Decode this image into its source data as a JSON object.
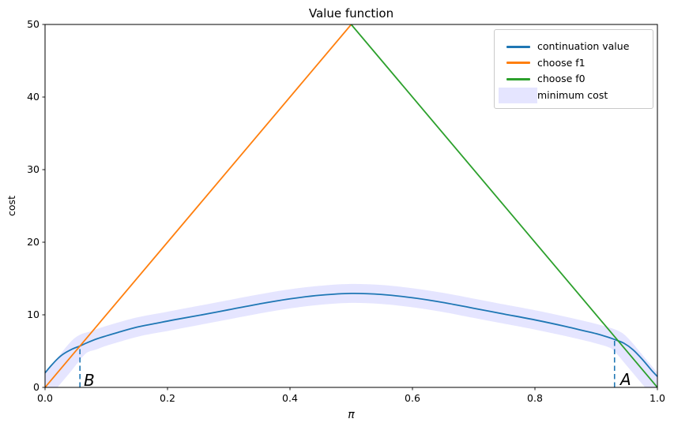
{
  "figure": {
    "title": "Value function",
    "xlabel": "π",
    "ylabel": "cost"
  },
  "annotations": {
    "a": "A",
    "b": "B"
  },
  "ticks": {
    "x_labels": [
      "0.0",
      "0.2",
      "0.4",
      "0.6",
      "0.8",
      "1.0"
    ],
    "y_labels": [
      "0",
      "10",
      "20",
      "30",
      "40",
      "50"
    ]
  },
  "legend": {
    "entries": [
      {
        "label": "continuation value",
        "swatch": "line",
        "color": "#1f77b4"
      },
      {
        "label": "choose f1",
        "swatch": "line",
        "color": "#ff7f0e"
      },
      {
        "label": "choose f0",
        "swatch": "line",
        "color": "#2ca02c"
      },
      {
        "label": "minimum cost",
        "swatch": "patch",
        "color": "#0000ff",
        "opacity": 0.1
      }
    ]
  },
  "chart_data": {
    "type": "line",
    "title": "Value function",
    "xlabel": "π",
    "ylabel": "cost",
    "xlim": [
      0,
      1
    ],
    "ylim": [
      0,
      50
    ],
    "x_ticks": [
      0,
      0.2,
      0.4,
      0.6,
      0.8,
      1.0
    ],
    "y_ticks": [
      0,
      10,
      20,
      30,
      40,
      50
    ],
    "grid": false,
    "legend_position": "upper right",
    "series": [
      {
        "name": "continuation value",
        "kind": "line",
        "color": "#1f77b4",
        "width": 1.8,
        "x": [
          0,
          0.01,
          0.02,
          0.03,
          0.045,
          0.057,
          0.07,
          0.085,
          0.1,
          0.12,
          0.15,
          0.18,
          0.21,
          0.25,
          0.3,
          0.35,
          0.4,
          0.45,
          0.5,
          0.55,
          0.6,
          0.65,
          0.7,
          0.75,
          0.8,
          0.85,
          0.88,
          0.9,
          0.92,
          0.93,
          0.945,
          0.96,
          0.975,
          0.99,
          1.0
        ],
        "y": [
          2.0,
          3.0,
          3.9,
          4.6,
          5.3,
          5.7,
          6.2,
          6.7,
          7.1,
          7.6,
          8.3,
          8.8,
          9.3,
          9.9,
          10.7,
          11.5,
          12.2,
          12.7,
          12.95,
          12.8,
          12.35,
          11.7,
          10.9,
          10.1,
          9.3,
          8.4,
          7.8,
          7.4,
          6.9,
          6.6,
          6.1,
          5.2,
          3.9,
          2.4,
          1.5
        ]
      },
      {
        "name": "choose f1",
        "kind": "line",
        "color": "#ff7f0e",
        "width": 1.8,
        "x": [
          0,
          0.5
        ],
        "y": [
          0,
          50
        ]
      },
      {
        "name": "choose f0",
        "kind": "line",
        "color": "#2ca02c",
        "width": 1.8,
        "x": [
          0.5,
          1.0
        ],
        "y": [
          50,
          0
        ]
      },
      {
        "name": "minimum cost",
        "kind": "band",
        "color": "#0000ff",
        "opacity": 0.1,
        "width": 24,
        "x": [
          0,
          0.028,
          0.057,
          0.08,
          0.1,
          0.15,
          0.2,
          0.25,
          0.3,
          0.35,
          0.4,
          0.45,
          0.5,
          0.55,
          0.6,
          0.65,
          0.7,
          0.75,
          0.8,
          0.85,
          0.9,
          0.93,
          0.945,
          0.96,
          0.98,
          1.0
        ],
        "y": [
          0,
          2.8,
          5.7,
          6.5,
          7.1,
          8.3,
          9.1,
          9.9,
          10.7,
          11.5,
          12.2,
          12.7,
          12.95,
          12.8,
          12.35,
          11.7,
          10.9,
          10.1,
          9.3,
          8.4,
          7.4,
          6.6,
          5.5,
          4.0,
          2.0,
          0
        ]
      }
    ],
    "vlines": [
      {
        "name": "B",
        "x": 0.057,
        "y0": 0,
        "y1": 5.7,
        "style": "dashed",
        "color": "#1f77b4"
      },
      {
        "name": "A",
        "x": 0.93,
        "y0": 0,
        "y1": 6.6,
        "style": "dashed",
        "color": "#1f77b4"
      }
    ],
    "point_labels": [
      {
        "text": "B",
        "x": 0.068,
        "cost": 0.9
      },
      {
        "text": "A",
        "x": 0.942,
        "cost": 1.0
      }
    ]
  }
}
